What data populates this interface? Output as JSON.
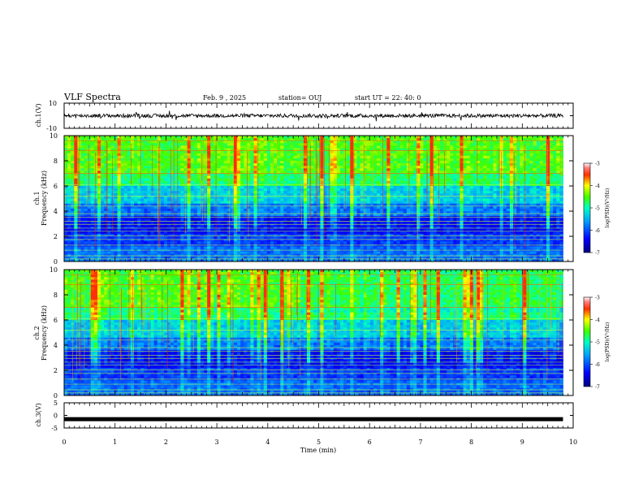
{
  "header": {
    "title": "VLF Spectra",
    "date": "Feb. 9  , 2025",
    "station": "station= OUJ",
    "start": "start  UT  =   22: 40: 0"
  },
  "chart_data": [
    {
      "id": "ch1-waveform",
      "type": "line",
      "ylabel": "ch.1(V)",
      "ylim": [
        -10,
        10
      ],
      "yticks": [
        "10",
        "-10"
      ],
      "xlim": [
        0,
        10
      ],
      "description_series": [
        {
          "x_start": 0,
          "x_end": 9.8,
          "baseline": 0,
          "noise_amplitude": 1.5
        }
      ]
    },
    {
      "id": "ch1-spectrogram",
      "type": "heatmap",
      "ylabel_1": "ch.1",
      "ylabel_2": "Frequency  (kHz)",
      "ylim": [
        0,
        10
      ],
      "yticks": [
        "0",
        "2",
        "4",
        "6",
        "8",
        "10"
      ],
      "xlim": [
        0,
        10
      ],
      "data_x_end": 9.8
    },
    {
      "id": "ch2-spectrogram",
      "type": "heatmap",
      "ylabel_1": "ch.2",
      "ylabel_2": "Frequency  (kHz)",
      "ylim": [
        0,
        10
      ],
      "yticks": [
        "0",
        "2",
        "4",
        "6",
        "8",
        "10"
      ],
      "xlim": [
        0,
        10
      ],
      "data_x_end": 9.8
    },
    {
      "id": "ch3-waveform",
      "type": "line",
      "ylabel": "ch.3(V)",
      "ylim": [
        -5,
        5
      ],
      "yticks": [
        "5",
        "0",
        "-5"
      ],
      "xlim": [
        0,
        10
      ],
      "description_series": [
        {
          "x_start": 0,
          "x_end": 9.8,
          "value": -1.5
        }
      ]
    }
  ],
  "xaxis": {
    "label": "Time  (min)",
    "ticks": [
      "0",
      "1",
      "2",
      "3",
      "4",
      "5",
      "6",
      "7",
      "8",
      "9",
      "10"
    ]
  },
  "colorbar": {
    "label": "log(PSD)(V²/Hz)",
    "ticks": [
      "-3",
      "-4",
      "-5",
      "-6",
      "-7"
    ],
    "range": [
      -7,
      -3
    ],
    "colors": [
      "#00008b",
      "#0000ff",
      "#0080ff",
      "#00ffff",
      "#00ff80",
      "#80ff00",
      "#ffff00",
      "#ff8000",
      "#ff0000",
      "#ffffff"
    ]
  }
}
